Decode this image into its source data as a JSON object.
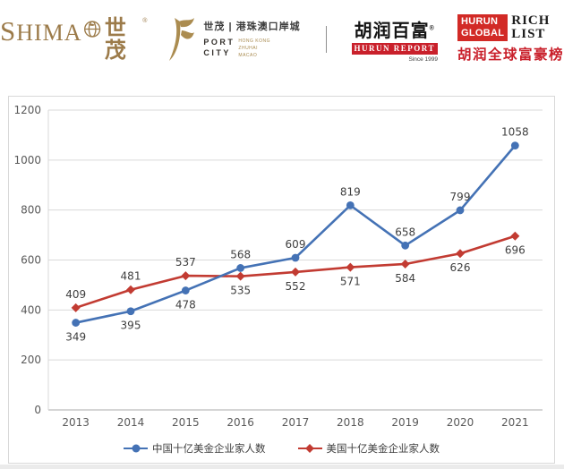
{
  "header": {
    "shimao": {
      "en": "SHIMA",
      "cn": "世茂",
      "reg": "®",
      "color": "#9c7b4a"
    },
    "port_city": {
      "cn": "世茂 | 港珠澳口岸城",
      "en1": "PORT",
      "en2": "CITY",
      "sub1": "HONG KONG",
      "sub2": "ZHUHAI",
      "sub3": "MACAO"
    },
    "hurun_report": {
      "cn": "胡润百富",
      "reg": "®",
      "banner": "HURUN REPORT",
      "since": "Since 1999"
    },
    "hurun_global": {
      "block1": "HURUN",
      "block2": "GLOBAL",
      "right1": "RICH",
      "right2": "LIST",
      "cn": "胡润全球富豪榜"
    }
  },
  "chart_data": {
    "type": "line",
    "title": "",
    "categories": [
      "2013",
      "2014",
      "2015",
      "2016",
      "2017",
      "2018",
      "2019",
      "2020",
      "2021"
    ],
    "series": [
      {
        "name": "中国十亿美金企业家人数",
        "color": "#4472b5",
        "marker": "circle",
        "values": [
          349,
          395,
          478,
          568,
          609,
          819,
          658,
          799,
          1058
        ],
        "label_side": [
          "below",
          "below",
          "below",
          "above",
          "above",
          "above",
          "above",
          "above",
          "above"
        ]
      },
      {
        "name": "美国十亿美金企业家人数",
        "color": "#c23b32",
        "marker": "diamond",
        "values": [
          409,
          481,
          537,
          535,
          552,
          571,
          584,
          626,
          696
        ],
        "label_side": [
          "above",
          "above",
          "above",
          "below",
          "below",
          "below",
          "below",
          "below",
          "below"
        ]
      }
    ],
    "xlabel": "",
    "ylabel": "",
    "ylim": [
      0,
      1200
    ],
    "ytick_step": 200,
    "ytick_labels": [
      "0",
      "200",
      "400",
      "600",
      "800",
      "1000",
      "1200"
    ],
    "grid": true,
    "legend_position": "bottom",
    "axis_color": "#ababab",
    "grid_color": "#d9d9d9"
  }
}
